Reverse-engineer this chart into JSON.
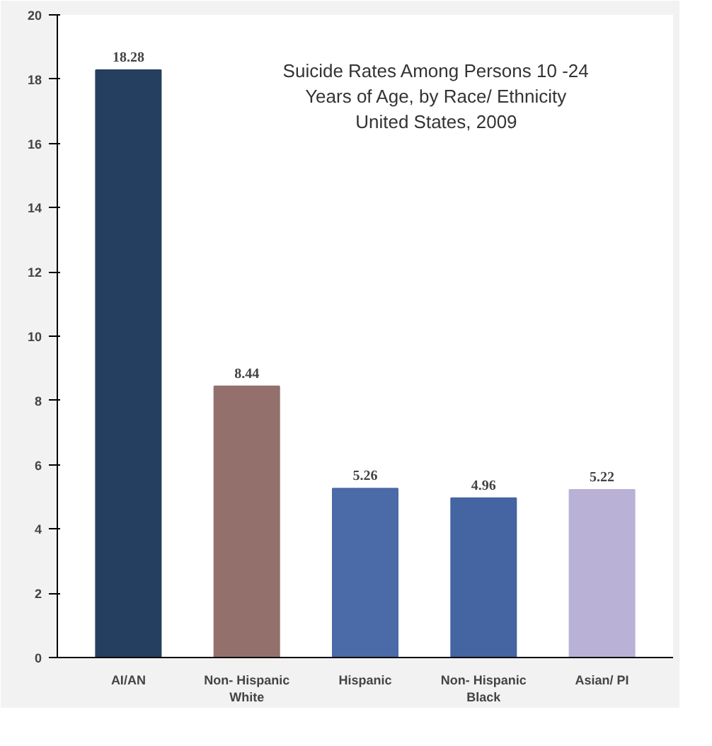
{
  "chart_data": {
    "type": "bar",
    "title": "Suicide Rates Among Persons 10 -24\nYears of Age, by Race/ Ethnicity\nUnited States, 2009",
    "categories": [
      "AI/AN",
      "Non- Hispanic\nWhite",
      "Hispanic",
      "Non- Hispanic\nBlack",
      "Asian/ PI"
    ],
    "values": [
      18.28,
      8.44,
      5.26,
      4.96,
      5.22
    ],
    "colors": [
      "#243f60",
      "#94706c",
      "#4a6aa8",
      "#4464a2",
      "#b9b1d6"
    ],
    "value_labels": [
      "18.28",
      "8.44",
      "5.26",
      "4.96",
      "5.22"
    ],
    "ylim": [
      0,
      20
    ],
    "yticks": [
      0,
      2,
      4,
      6,
      8,
      10,
      12,
      14,
      16,
      18,
      20
    ],
    "grid": false
  }
}
